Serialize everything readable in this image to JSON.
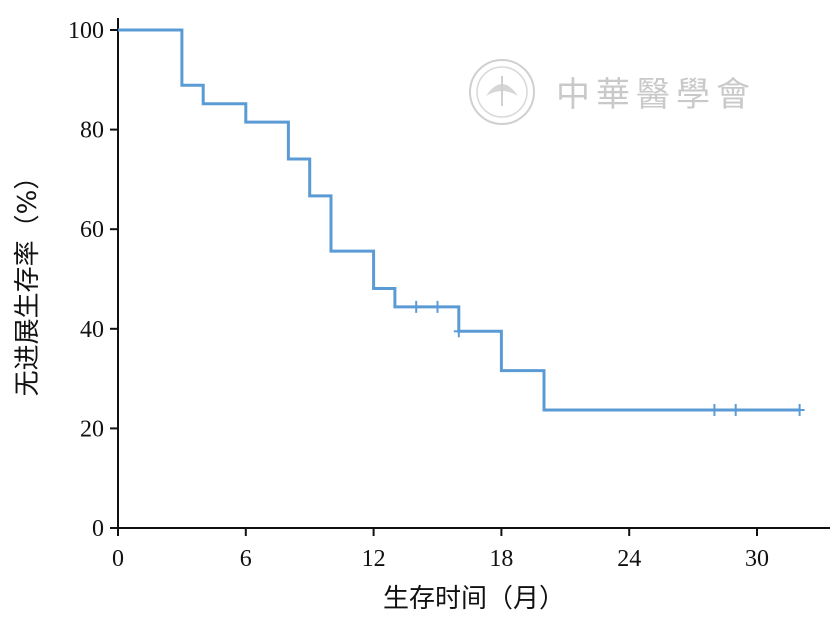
{
  "watermark": {
    "text": "中華醫學會"
  },
  "chart_data": {
    "type": "line",
    "style": "step",
    "title": "",
    "xlabel": "生存时间（月）",
    "ylabel": "无进展生存率（%）",
    "xlim": [
      0,
      33
    ],
    "ylim": [
      0,
      100
    ],
    "xticks": [
      0,
      6,
      12,
      18,
      24,
      30
    ],
    "yticks": [
      0,
      20,
      40,
      60,
      80,
      100
    ],
    "grid": false,
    "line_color": "#5b9bd5",
    "series": [
      {
        "x": [
          0,
          3,
          4,
          6,
          8,
          9,
          10,
          12,
          13,
          16,
          18,
          20,
          32
        ],
        "y": [
          100,
          88.9,
          85.2,
          81.5,
          74.1,
          66.7,
          55.6,
          48.1,
          44.4,
          39.5,
          31.6,
          23.7,
          23.7
        ]
      }
    ],
    "censored": [
      {
        "x": 14,
        "y": 44.4
      },
      {
        "x": 15,
        "y": 44.4
      },
      {
        "x": 16,
        "y": 39.5
      },
      {
        "x": 28,
        "y": 23.7
      },
      {
        "x": 29,
        "y": 23.7
      },
      {
        "x": 32,
        "y": 23.7
      }
    ]
  }
}
